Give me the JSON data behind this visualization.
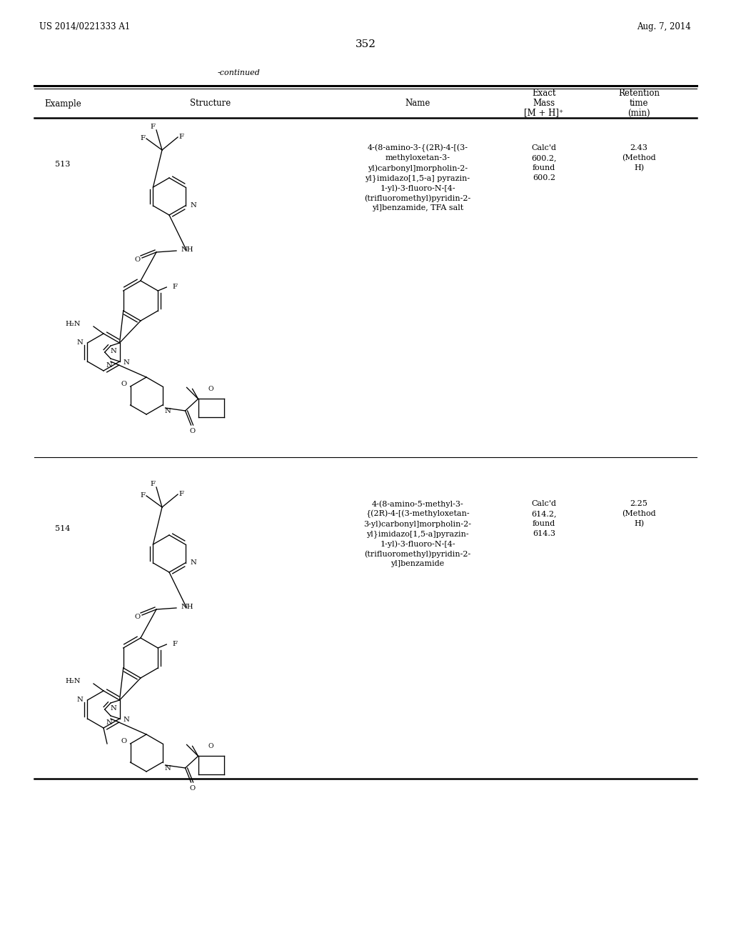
{
  "page_number": "352",
  "patent_number": "US 2014/0221333 A1",
  "patent_date": "Aug. 7, 2014",
  "continued_label": "-continued",
  "col1_header": "Example",
  "col2_header": "Structure",
  "col3_header": "Name",
  "col4_header_line1": "Exact",
  "col4_header_line2": "Mass",
  "col4_header_line3": "[M + H]⁺",
  "col5_header_line1": "Retention",
  "col5_header_line2": "time",
  "col5_header_line3": "(min)",
  "rows": [
    {
      "example": "513",
      "name_lines": [
        "4-(8-amino-3-{(2R)-4-[(3-",
        "methyloxetan-3-",
        "yl)carbonyl]morpholin-2-",
        "yl}imidazo[1,5-a] pyrazin-",
        "1-yl)-3-fluoro-N-[4-",
        "(trifluoromethyl)pyridin-2-",
        "yl]benzamide, TFA salt"
      ],
      "exact_mass_lines": [
        "Calc'd",
        "600.2,",
        "found",
        "600.2"
      ],
      "retention_time": "2.43",
      "method": "(Method\nH)"
    },
    {
      "example": "514",
      "name_lines": [
        "4-(8-amino-5-methyl-3-",
        "{(2R)-4-[(3-methyloxetan-",
        "3-yl)carbonyl]morpholin-2-",
        "yl}imidazo[1,5-a]pyrazin-",
        "1-yl)-3-fluoro-N-[4-",
        "(trifluoromethyl)pyridin-2-",
        "yl]benzamide"
      ],
      "exact_mass_lines": [
        "Calc'd",
        "614.2,",
        "found",
        "614.3"
      ],
      "retention_time": "2.25",
      "method": "(Method\nH)"
    }
  ],
  "bg_color": "#ffffff",
  "text_color": "#000000",
  "font_size_header": 8.5,
  "font_size_body": 8.0,
  "font_size_page": 8.5,
  "font_size_page_num": 11
}
